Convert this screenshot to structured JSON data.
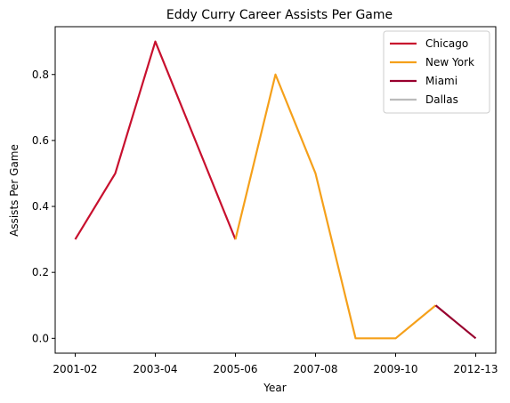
{
  "chart_data": {
    "type": "line",
    "title": "Eddy Curry Career Assists Per Game",
    "xlabel": "Year",
    "ylabel": "Assists Per Game",
    "x_categories": [
      "2001-02",
      "2002-03",
      "2003-04",
      "2004-05",
      "2005-06",
      "2006-07",
      "2007-08",
      "2008-09",
      "2009-10",
      "2010-11",
      "2012-13"
    ],
    "x_tick_labels": [
      "2001-02",
      "2003-04",
      "2005-06",
      "2007-08",
      "2009-10",
      "2012-13"
    ],
    "y_ticks": [
      0.0,
      0.2,
      0.4,
      0.6,
      0.8
    ],
    "y_tick_labels": [
      "0.0",
      "0.2",
      "0.4",
      "0.6",
      "0.8"
    ],
    "ylim": [
      -0.045,
      0.945
    ],
    "grid": false,
    "legend_position": "top-right",
    "series": [
      {
        "name": "Chicago",
        "color": "#c8102e",
        "points": [
          {
            "x": "2001-02",
            "y": 0.3
          },
          {
            "x": "2002-03",
            "y": 0.5
          },
          {
            "x": "2003-04",
            "y": 0.9
          },
          {
            "x": "2004-05",
            "y": 0.6
          },
          {
            "x": "2005-06",
            "y": 0.3
          }
        ]
      },
      {
        "name": "New York",
        "color": "#f5a01a",
        "points": [
          {
            "x": "2005-06",
            "y": 0.3
          },
          {
            "x": "2006-07",
            "y": 0.8
          },
          {
            "x": "2007-08",
            "y": 0.5
          },
          {
            "x": "2008-09",
            "y": 0.0
          },
          {
            "x": "2009-10",
            "y": 0.0
          },
          {
            "x": "2010-11",
            "y": 0.1
          }
        ]
      },
      {
        "name": "Miami",
        "color": "#98002e",
        "points": [
          {
            "x": "2010-11",
            "y": 0.1
          },
          {
            "x": "2012-13",
            "y": 0.0
          }
        ]
      },
      {
        "name": "Dallas",
        "color": "#bbbbbb",
        "points": []
      }
    ]
  }
}
